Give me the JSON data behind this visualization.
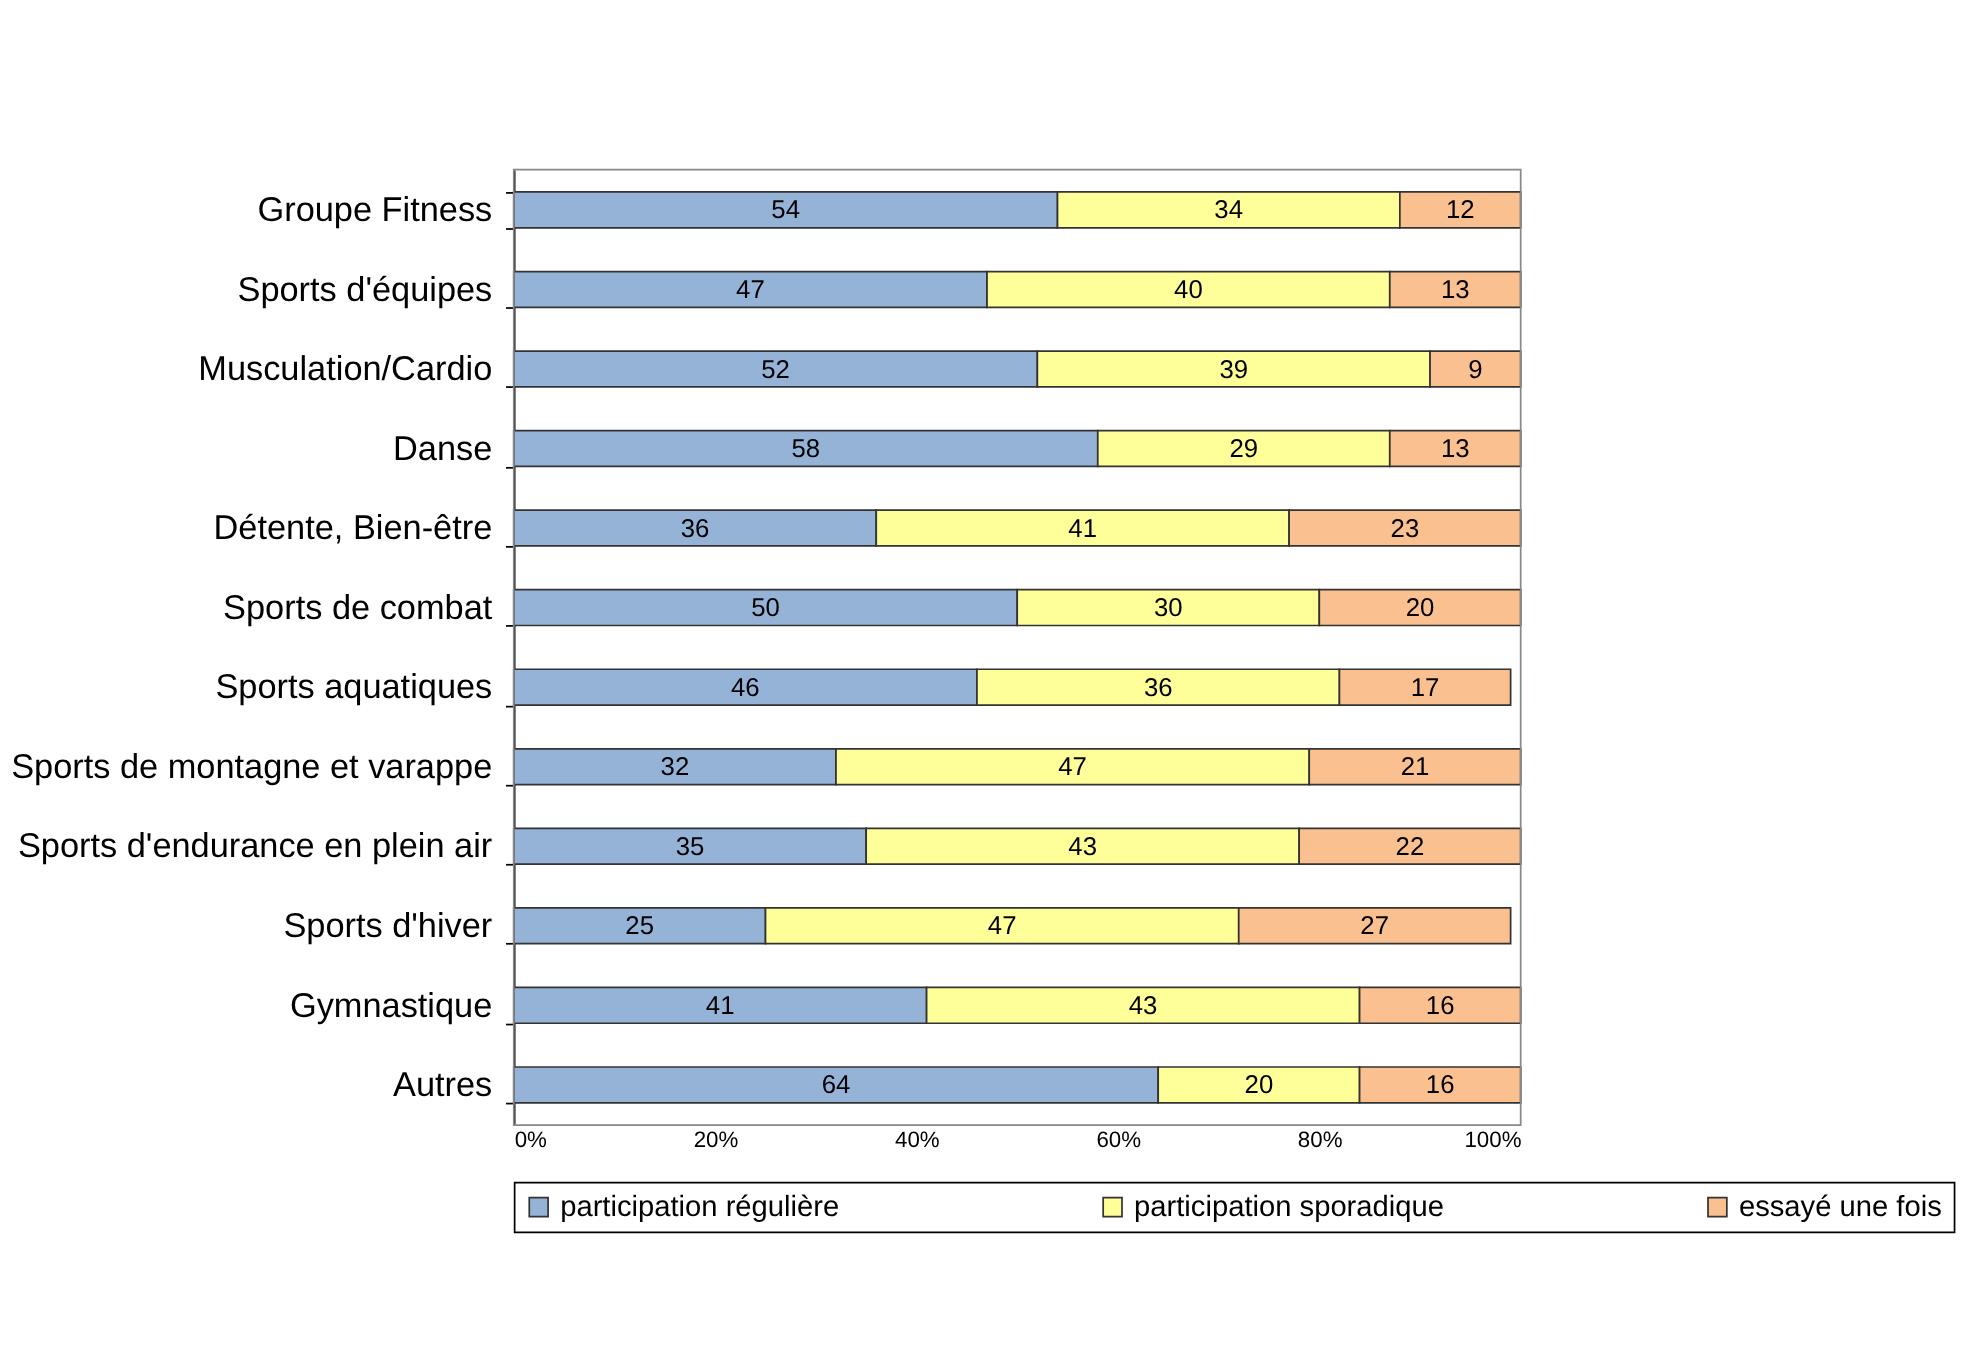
{
  "chart_data": {
    "type": "bar",
    "orientation": "horizontal",
    "stacked": true,
    "data_labels": true,
    "legend": "bottom",
    "grid": false,
    "categories": [
      "Groupe Fitness",
      "Sports d'équipes",
      "Musculation/Cardio",
      "Danse",
      "Détente, Bien-être",
      "Sports de combat",
      "Sports aquatiques",
      "Sports de montagne et varappe",
      "Sports d'endurance en plein air",
      "Sports d'hiver",
      "Gymnastique",
      "Autres"
    ],
    "series": [
      {
        "name": "participation régulière",
        "color": "#95b3d7",
        "values": [
          54,
          47,
          52,
          58,
          36,
          50,
          46,
          32,
          35,
          25,
          41,
          64
        ]
      },
      {
        "name": "participation sporadique",
        "color": "#ffff99",
        "values": [
          34,
          40,
          39,
          29,
          41,
          30,
          36,
          47,
          43,
          47,
          43,
          20
        ]
      },
      {
        "name": "essayé une fois",
        "color": "#fac090",
        "values": [
          12,
          13,
          9,
          13,
          23,
          20,
          17,
          21,
          22,
          27,
          16,
          16
        ]
      }
    ],
    "xlim": [
      0,
      100
    ],
    "xticks": [
      {
        "value": 0,
        "label": "0%"
      },
      {
        "value": 20,
        "label": "20%"
      },
      {
        "value": 40,
        "label": "40%"
      },
      {
        "value": 60,
        "label": "60%"
      },
      {
        "value": 80,
        "label": "80%"
      },
      {
        "value": 100,
        "label": "100%"
      }
    ]
  }
}
